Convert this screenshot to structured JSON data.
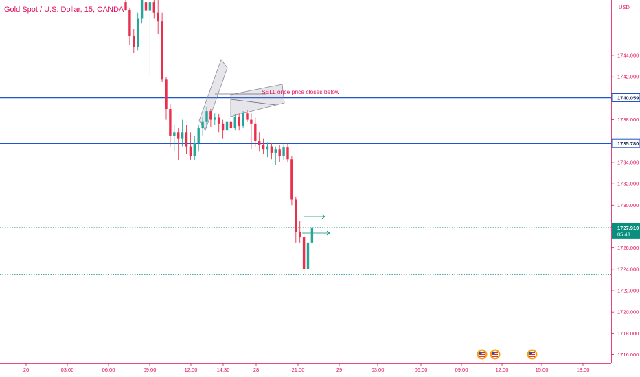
{
  "chart_data": {
    "type": "candlestick",
    "title": "Gold Spot / U.S. Dollar, 15, OANDA",
    "currency": "USD",
    "ylim": [
      1715.2,
      1749.2
    ],
    "y_ticks": [
      "1744.000",
      "1742.000",
      "1740.000",
      "1738.000",
      "1736.000",
      "1734.000",
      "1732.000",
      "1730.000",
      "1728.000",
      "1726.000",
      "1724.000",
      "1722.000",
      "1720.000",
      "1718.000",
      "1716.000"
    ],
    "x_ticks": [
      "26",
      "03:00",
      "06:00",
      "09:00",
      "12:00",
      "14:30",
      "28",
      "21:00",
      "29",
      "03:00",
      "06:00",
      "09:00",
      "12:00",
      "15:00",
      "18:00"
    ],
    "horizontal_levels": [
      {
        "price": 1740.059,
        "label": "1740.059",
        "color": "#1e55c8"
      },
      {
        "price": 1735.78,
        "label": "1735.780",
        "color": "#1e55c8"
      }
    ],
    "last_price": {
      "label": "1727.910",
      "countdown": "05:43",
      "price": 1727.91,
      "color": "#0a8f7e"
    },
    "dotted_levels": [
      1727.91,
      1723.5
    ],
    "annotation": "SELL once price closes below",
    "candles": [
      {
        "o": 1749.0,
        "h": 1749.3,
        "l": 1748.2,
        "c": 1748.3
      },
      {
        "o": 1748.3,
        "h": 1748.5,
        "l": 1745.0,
        "c": 1745.8
      },
      {
        "o": 1745.8,
        "h": 1746.5,
        "l": 1744.2,
        "c": 1744.8
      },
      {
        "o": 1744.8,
        "h": 1748.0,
        "l": 1744.5,
        "c": 1747.5
      },
      {
        "o": 1747.5,
        "h": 1749.3,
        "l": 1747.0,
        "c": 1749.2
      },
      {
        "o": 1749.0,
        "h": 1749.3,
        "l": 1747.8,
        "c": 1748.2
      },
      {
        "o": 1748.2,
        "h": 1749.3,
        "l": 1742.0,
        "c": 1749.0
      },
      {
        "o": 1749.0,
        "h": 1749.3,
        "l": 1747.5,
        "c": 1748.0
      },
      {
        "o": 1748.0,
        "h": 1749.3,
        "l": 1746.0,
        "c": 1747.2
      },
      {
        "o": 1747.2,
        "h": 1748.0,
        "l": 1741.5,
        "c": 1741.8
      },
      {
        "o": 1741.8,
        "h": 1742.0,
        "l": 1738.0,
        "c": 1739.0
      },
      {
        "o": 1739.0,
        "h": 1739.5,
        "l": 1735.5,
        "c": 1736.5
      },
      {
        "o": 1736.5,
        "h": 1737.5,
        "l": 1735.0,
        "c": 1736.8
      },
      {
        "o": 1736.8,
        "h": 1737.2,
        "l": 1734.2,
        "c": 1736.2
      },
      {
        "o": 1736.2,
        "h": 1738.0,
        "l": 1735.5,
        "c": 1736.8
      },
      {
        "o": 1736.8,
        "h": 1737.5,
        "l": 1734.8,
        "c": 1735.5
      },
      {
        "o": 1735.5,
        "h": 1736.8,
        "l": 1734.2,
        "c": 1734.6
      },
      {
        "o": 1734.6,
        "h": 1736.5,
        "l": 1734.2,
        "c": 1735.8
      },
      {
        "o": 1735.8,
        "h": 1737.5,
        "l": 1735.0,
        "c": 1737.2
      },
      {
        "o": 1737.2,
        "h": 1738.3,
        "l": 1736.5,
        "c": 1737.8
      },
      {
        "o": 1737.8,
        "h": 1739.2,
        "l": 1737.2,
        "c": 1738.8
      },
      {
        "o": 1738.8,
        "h": 1739.0,
        "l": 1737.3,
        "c": 1738.0
      },
      {
        "o": 1738.0,
        "h": 1738.6,
        "l": 1737.5,
        "c": 1738.2
      },
      {
        "o": 1738.2,
        "h": 1738.5,
        "l": 1736.8,
        "c": 1737.6
      },
      {
        "o": 1737.6,
        "h": 1738.0,
        "l": 1736.2,
        "c": 1737.0
      },
      {
        "o": 1737.0,
        "h": 1738.3,
        "l": 1736.8,
        "c": 1737.8
      },
      {
        "o": 1737.8,
        "h": 1738.2,
        "l": 1736.8,
        "c": 1737.2
      },
      {
        "o": 1737.2,
        "h": 1738.5,
        "l": 1737.0,
        "c": 1738.3
      },
      {
        "o": 1738.3,
        "h": 1738.6,
        "l": 1737.0,
        "c": 1737.4
      },
      {
        "o": 1737.4,
        "h": 1738.8,
        "l": 1737.2,
        "c": 1738.6
      },
      {
        "o": 1738.6,
        "h": 1738.9,
        "l": 1737.8,
        "c": 1738.0
      },
      {
        "o": 1738.0,
        "h": 1738.6,
        "l": 1735.2,
        "c": 1737.6
      },
      {
        "o": 1737.6,
        "h": 1738.2,
        "l": 1735.5,
        "c": 1736.0
      },
      {
        "o": 1736.0,
        "h": 1736.8,
        "l": 1735.0,
        "c": 1735.6
      },
      {
        "o": 1735.6,
        "h": 1736.2,
        "l": 1734.8,
        "c": 1735.2
      },
      {
        "o": 1735.2,
        "h": 1735.9,
        "l": 1734.5,
        "c": 1735.5
      },
      {
        "o": 1735.5,
        "h": 1735.8,
        "l": 1734.3,
        "c": 1734.9
      },
      {
        "o": 1734.9,
        "h": 1735.5,
        "l": 1733.8,
        "c": 1735.2
      },
      {
        "o": 1735.2,
        "h": 1735.6,
        "l": 1734.0,
        "c": 1734.6
      },
      {
        "o": 1734.6,
        "h": 1735.7,
        "l": 1734.2,
        "c": 1735.4
      },
      {
        "o": 1735.4,
        "h": 1735.8,
        "l": 1734.0,
        "c": 1734.3
      },
      {
        "o": 1734.3,
        "h": 1734.6,
        "l": 1730.0,
        "c": 1730.5
      },
      {
        "o": 1730.5,
        "h": 1730.8,
        "l": 1726.5,
        "c": 1727.5
      },
      {
        "o": 1727.5,
        "h": 1728.5,
        "l": 1726.5,
        "c": 1727.0
      },
      {
        "o": 1727.0,
        "h": 1727.5,
        "l": 1723.5,
        "c": 1724.0
      },
      {
        "o": 1724.0,
        "h": 1726.8,
        "l": 1723.8,
        "c": 1726.5
      },
      {
        "o": 1726.5,
        "h": 1728.0,
        "l": 1726.2,
        "c": 1727.91
      }
    ]
  }
}
